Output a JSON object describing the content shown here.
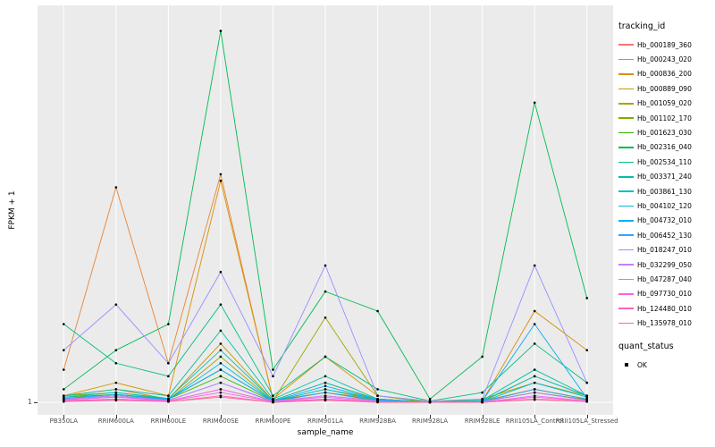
{
  "figure": {
    "xlabel": "sample_name",
    "ylabel": "FPKM + 1",
    "y_tick": "1"
  },
  "legend": {
    "tracking_title": "tracking_id",
    "quant_title": "quant_status",
    "quant_label": "OK"
  },
  "chart_data": {
    "type": "line",
    "title": "",
    "xlabel": "sample_name",
    "ylabel": "FPKM + 1",
    "ylim": [
      1,
      60
    ],
    "y_ticks": [
      "1"
    ],
    "grid": "white vertical gridline per category on gray panel",
    "legend_position": "right",
    "panel_bg": "#EBEBEB",
    "point_color": "#000000",
    "quant_status": "OK",
    "categories": [
      "PB350LA",
      "RRIM600LA",
      "RRIM600LE",
      "RRIM600SE",
      "RRIM600PE",
      "RRIM901LA",
      "RRIM928BA",
      "RRIM928LA",
      "RRIM928LE",
      "RRII105LA_Control",
      "RRII105LA_Stressed"
    ],
    "series": [
      {
        "name": "Hb_000189_360",
        "color": "#F8766D",
        "values": [
          1.5,
          2.0,
          1.2,
          3.0,
          1.1,
          2.0,
          1.3,
          1.0,
          1.1,
          2.5,
          1.4
        ]
      },
      {
        "name": "Hb_000243_020",
        "color": "#EA8331",
        "values": [
          6.0,
          34.0,
          7.0,
          36.0,
          1.3,
          2.5,
          1.5,
          1.0,
          1.1,
          3.0,
          1.5
        ]
      },
      {
        "name": "Hb_000836_200",
        "color": "#D89000",
        "values": [
          2.0,
          4.0,
          2.0,
          35.0,
          1.5,
          8.0,
          2.0,
          1.0,
          1.2,
          15.0,
          9.0
        ]
      },
      {
        "name": "Hb_000889_090",
        "color": "#C09B00",
        "values": [
          2.0,
          3.0,
          1.5,
          10.0,
          1.3,
          4.0,
          1.5,
          1.0,
          1.1,
          5.0,
          2.0
        ]
      },
      {
        "name": "Hb_001059_020",
        "color": "#A3A500",
        "values": [
          1.5,
          2.0,
          1.4,
          8.0,
          1.2,
          14.0,
          2.0,
          1.0,
          1.5,
          4.0,
          2.0
        ]
      },
      {
        "name": "Hb_001102_170",
        "color": "#7CAE00",
        "values": [
          2.0,
          2.5,
          1.5,
          6.0,
          1.2,
          3.0,
          1.5,
          1.0,
          1.2,
          3.0,
          1.5
        ]
      },
      {
        "name": "Hb_001623_030",
        "color": "#39B600",
        "values": [
          1.8,
          2.2,
          1.5,
          5.0,
          1.2,
          2.5,
          1.3,
          1.0,
          1.1,
          2.5,
          1.4
        ]
      },
      {
        "name": "Hb_002316_040",
        "color": "#00BB4E",
        "values": [
          3.0,
          9.0,
          13.0,
          58.0,
          6.0,
          18.0,
          15.0,
          1.5,
          8.0,
          47.0,
          17.0
        ]
      },
      {
        "name": "Hb_002534_110",
        "color": "#00BF7D",
        "values": [
          13.0,
          7.0,
          5.0,
          16.0,
          2.0,
          8.0,
          3.0,
          1.2,
          2.5,
          10.0,
          4.0
        ]
      },
      {
        "name": "Hb_003371_240",
        "color": "#00C1A3",
        "values": [
          2.0,
          3.0,
          2.0,
          12.0,
          1.5,
          5.0,
          1.5,
          1.0,
          1.3,
          6.0,
          2.0
        ]
      },
      {
        "name": "Hb_003861_130",
        "color": "#00BFC4",
        "values": [
          1.8,
          2.5,
          1.6,
          9.0,
          1.3,
          4.0,
          1.4,
          1.0,
          1.2,
          5.0,
          2.0
        ]
      },
      {
        "name": "Hb_004102_120",
        "color": "#00BAE0",
        "values": [
          1.5,
          2.0,
          1.4,
          7.0,
          1.2,
          3.0,
          1.3,
          1.0,
          1.1,
          4.0,
          1.8
        ]
      },
      {
        "name": "Hb_004732_010",
        "color": "#00B0F6",
        "values": [
          1.6,
          2.2,
          1.5,
          6.0,
          1.2,
          3.5,
          1.4,
          1.0,
          1.2,
          13.0,
          1.6
        ]
      },
      {
        "name": "Hb_006452_130",
        "color": "#35A2FF",
        "values": [
          1.4,
          1.8,
          1.3,
          4.0,
          1.1,
          2.5,
          1.2,
          1.0,
          1.1,
          3.0,
          1.5
        ]
      },
      {
        "name": "Hb_018247_010",
        "color": "#9590FF",
        "values": [
          9.0,
          16.0,
          7.0,
          21.0,
          5.0,
          22.0,
          2.0,
          1.2,
          1.5,
          22.0,
          4.0
        ]
      },
      {
        "name": "Hb_032299_050",
        "color": "#C77CFF",
        "values": [
          1.5,
          2.0,
          1.3,
          4.0,
          1.2,
          2.0,
          1.2,
          1.0,
          1.1,
          2.5,
          1.3
        ]
      },
      {
        "name": "Hb_047287_040",
        "color": "#E76BF3",
        "values": [
          1.4,
          1.8,
          1.2,
          3.0,
          1.1,
          1.8,
          1.1,
          1.0,
          1.0,
          2.0,
          1.2
        ]
      },
      {
        "name": "Hb_097730_010",
        "color": "#FA62DB",
        "values": [
          1.3,
          1.5,
          1.2,
          2.5,
          1.1,
          1.5,
          1.1,
          1.0,
          1.0,
          1.8,
          1.2
        ]
      },
      {
        "name": "Hb_124480_010",
        "color": "#FF62BC",
        "values": [
          1.2,
          1.4,
          1.1,
          2.0,
          1.0,
          1.4,
          1.1,
          1.0,
          1.0,
          1.5,
          1.1
        ]
      },
      {
        "name": "Hb_135978_010",
        "color": "#FF6A98",
        "values": [
          1.1,
          1.3,
          1.1,
          1.8,
          1.0,
          1.3,
          1.0,
          1.0,
          1.0,
          1.4,
          1.1
        ]
      }
    ]
  }
}
